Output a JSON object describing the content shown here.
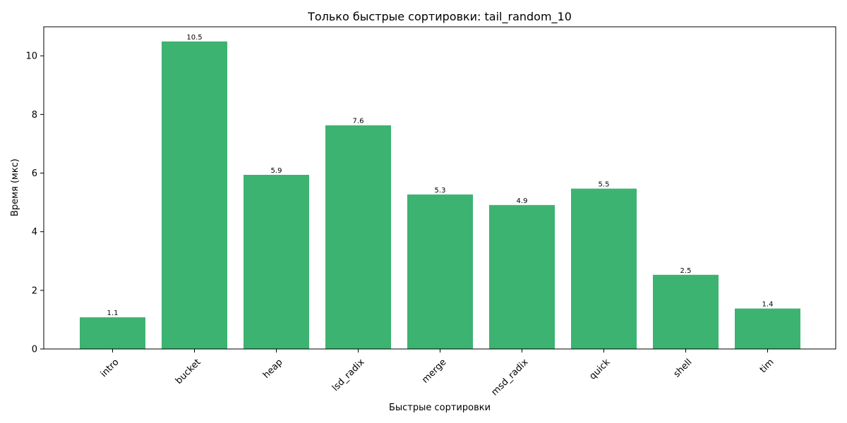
{
  "chart_data": {
    "type": "bar",
    "title": "Только быстрые сортировки: tail_random_10",
    "xlabel": "Быстрые сортировки",
    "ylabel": "Время (мкс)",
    "categories": [
      "intro",
      "bucket",
      "heap",
      "lsd_radix",
      "merge",
      "msd_radix",
      "quick",
      "shell",
      "tim"
    ],
    "values": [
      1.08,
      10.49,
      5.94,
      7.63,
      5.27,
      4.91,
      5.47,
      2.53,
      1.38
    ],
    "value_labels": [
      "1.1",
      "10.5",
      "5.9",
      "7.6",
      "5.3",
      "4.9",
      "5.5",
      "2.5",
      "1.4"
    ],
    "ylim": [
      0,
      10.99
    ],
    "yticks": [
      0,
      2,
      4,
      6,
      8,
      10
    ],
    "bar_color": "#3cb371",
    "grid": false,
    "legend": null
  }
}
